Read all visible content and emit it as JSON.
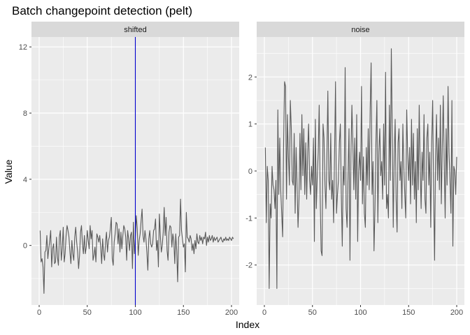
{
  "chart_data": {
    "type": "line",
    "title": "Batch changepoint detection (pelt)",
    "xlabel": "Index",
    "ylabel": "Value",
    "colors": {
      "line": "#595959",
      "changepoint": "#0000cd",
      "panel_bg": "#ebebeb",
      "strip_bg": "#d9d9d9",
      "grid": "#ffffff"
    },
    "panels": [
      {
        "strip": "shifted",
        "xlim": [
          -8,
          208
        ],
        "ylim": [
          -3.6,
          12.6
        ],
        "x_ticks": [
          0,
          50,
          100,
          150,
          200
        ],
        "y_ticks": [
          0,
          4,
          8,
          12
        ],
        "changepoints": [
          100
        ],
        "series": [
          {
            "x_start": 1,
            "x_step": 1,
            "values": [
              0.9,
              -1.0,
              -0.8,
              -1.3,
              -2.9,
              -0.4,
              -0.3,
              0.6,
              -0.8,
              -0.2,
              0.3,
              0.9,
              -1.3,
              -0.2,
              0.1,
              -1.1,
              -1.0,
              0.5,
              -0.7,
              -1.2,
              0.5,
              0.9,
              -0.9,
              -0.2,
              1.1,
              -1.0,
              -0.5,
              0.6,
              1.2,
              0.9,
              0.5,
              -0.4,
              -1.1,
              0.3,
              -0.5,
              -0.9,
              0.5,
              1.1,
              0.2,
              -0.4,
              -1.4,
              -0.6,
              0.8,
              1.2,
              0.1,
              -0.5,
              0.6,
              -0.5,
              -0.1,
              0.9,
              0.3,
              -0.2,
              1.2,
              0.4,
              0.9,
              -0.9,
              -0.6,
              -0.1,
              -1.0,
              0.7,
              0.5,
              0.2,
              0.6,
              -0.1,
              -1.1,
              0.4,
              -0.5,
              -0.9,
              0.2,
              0.8,
              -0.4,
              0.3,
              0.5,
              1.0,
              1.7,
              -0.8,
              -1.2,
              0.2,
              0.7,
              1.4,
              1.3,
              0.1,
              1.0,
              -0.4,
              0.8,
              -0.2,
              0.6,
              1.2,
              1.0,
              0.5,
              -0.9,
              0.9,
              0.4,
              -0.3,
              0.6,
              0.8,
              -1.4,
              1.4,
              -0.5,
              0.4,
              1.8,
              1.0,
              -0.6,
              0.3,
              0.7,
              1.5,
              2.2,
              0.6,
              0.2,
              0.9,
              0.4,
              -0.4,
              -1.5,
              0.4,
              0.9,
              0.1,
              -0.1,
              0.1,
              0.9,
              1.0,
              1.6,
              -0.3,
              0.3,
              -1.3,
              1.9,
              0.6,
              -0.4,
              0.0,
              0.8,
              2.3,
              0.6,
              1.7,
              -0.3,
              -0.9,
              0.8,
              1.2,
              1.1,
              -0.1,
              0.7,
              0.3,
              -1.1,
              0.7,
              -0.3,
              -2.2,
              0.5,
              0.6,
              2.8,
              0.9,
              0.4,
              -0.1,
              0.1,
              -1.6,
              2.0,
              0.5,
              0.4,
              0.2,
              0.6,
              0.4,
              -0.3,
              0.1,
              -0.5,
              0.3,
              -0.2,
              0.7,
              0.2,
              0.1,
              0.6,
              0.3,
              0.5,
              0.1,
              0.5,
              0.4,
              0.8,
              0.0,
              0.5,
              0.2,
              0.6,
              0.3,
              0.4,
              0.6,
              0.2,
              0.5,
              0.3,
              0.4,
              0.5,
              0.2,
              0.3,
              0.4,
              0.5,
              0.3,
              0.2,
              0.4,
              0.3,
              0.5,
              0.3,
              0.4,
              0.3,
              0.5,
              0.4,
              0.3,
              0.5,
              0.4
            ]
          }
        ]
      },
      {
        "strip": "noise",
        "xlim": [
          -8,
          208
        ],
        "ylim": [
          -2.85,
          2.85
        ],
        "x_ticks": [
          0,
          50,
          100,
          150,
          200
        ],
        "y_ticks": [
          -2,
          -1,
          0,
          1,
          2
        ],
        "changepoints": [],
        "series": [
          {
            "x_start": 1,
            "x_step": 1,
            "values": [
              0.5,
              -1.1,
              0.1,
              -0.2,
              -2.5,
              -0.7,
              -1.0,
              0.1,
              -0.3,
              -0.4,
              -0.8,
              -0.2,
              -2.5,
              1.3,
              -0.5,
              0.7,
              -0.4,
              -0.9,
              -1.4,
              0.6,
              1.9,
              1.8,
              -0.6,
              1.2,
              0.3,
              -0.3,
              1.5,
              0.9,
              -0.2,
              -0.3,
              0.8,
              -0.9,
              0.5,
              -0.3,
              -1.2,
              -0.6,
              0.8,
              -0.4,
              1.2,
              -0.1,
              0.9,
              -0.5,
              0.6,
              -0.6,
              0.4,
              1.0,
              -0.2,
              -0.5,
              0.1,
              -0.3,
              0.7,
              -1.5,
              1.1,
              -0.8,
              -0.1,
              0.4,
              1.4,
              -0.5,
              -1.7,
              -1.8,
              1.0,
              0.7,
              -0.3,
              -0.8,
              0.3,
              1.7,
              -0.2,
              -0.4,
              0.8,
              -0.6,
              -0.2,
              -1.1,
              0.4,
              1.9,
              -0.9,
              -0.5,
              -0.2,
              0.6,
              1.0,
              -0.5,
              -1.6,
              0.1,
              -0.3,
              2.2,
              -0.8,
              -1.2,
              -0.1,
              0.9,
              -1.9,
              0.3,
              1.4,
              0.6,
              -0.4,
              0.7,
              -0.6,
              1.2,
              -1.5,
              0.0,
              0.4,
              -0.2,
              1.8,
              -0.7,
              0.3,
              -0.9,
              -1.2,
              0.5,
              -0.3,
              0.9,
              -0.4,
              1.3,
              2.3,
              -0.5,
              0.2,
              -1.7,
              -0.8,
              0.6,
              1.5,
              -1.1,
              0.4,
              0.9,
              -0.1,
              0.2,
              -0.6,
              1.0,
              -0.3,
              2.1,
              -0.8,
              -0.5,
              -1.0,
              1.4,
              -0.2,
              2.6,
              0.8,
              -1.2,
              0.3,
              1.1,
              -0.6,
              -1.3,
              0.6,
              0.9,
              -0.2,
              0.2,
              -0.8,
              1.0,
              0.1,
              -0.5,
              -1.0,
              1.3,
              0.4,
              -0.2,
              0.5,
              -0.7,
              1.1,
              -0.3,
              0.8,
              -0.6,
              0.2,
              -1.1,
              0.9,
              -0.4,
              1.4,
              0.1,
              -0.8,
              0.4,
              -0.2,
              1.2,
              -0.6,
              -0.9,
              0.7,
              1.0,
              -0.3,
              0.4,
              -1.2,
              0.6,
              1.5,
              -0.5,
              -1.9,
              0.3,
              1.2,
              -0.2,
              0.7,
              -0.4,
              1.4,
              -0.7,
              0.5,
              1.6,
              0.2,
              -1.0,
              0.9,
              -0.3,
              1.8,
              0.4,
              -0.2,
              -0.9,
              1.5,
              -1.6,
              0.1,
              0.0,
              -0.5,
              0.3
            ]
          }
        ]
      }
    ]
  }
}
